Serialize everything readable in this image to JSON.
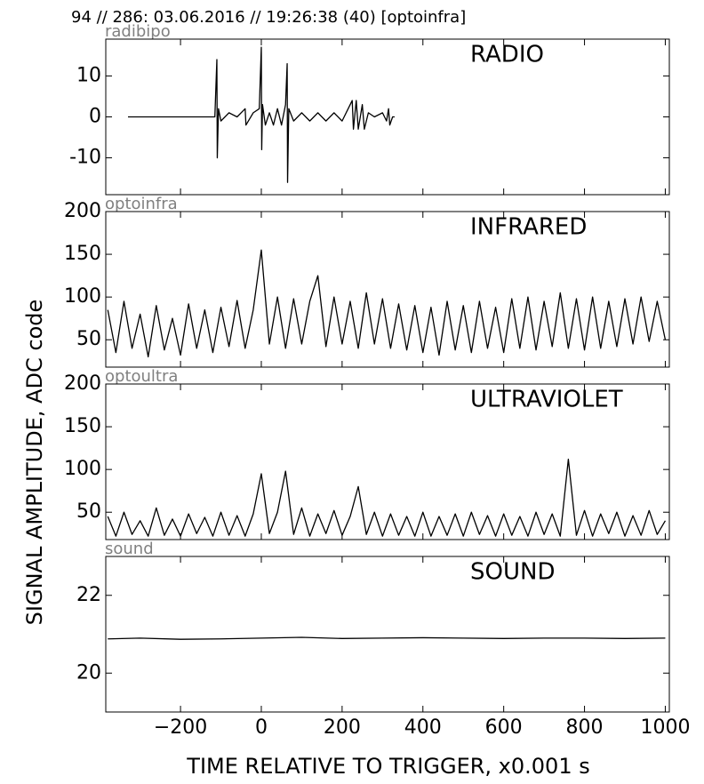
{
  "header": "94 // 286:   03.06.2016 // 19:26:38 (40)  [optoinfra]",
  "ylabel": "SIGNAL AMPLITUDE,  ADC code",
  "xlabel": "TIME RELATIVE TO TRIGGER,   x0.001 s",
  "chart_data": [
    {
      "type": "line",
      "label": "radibipo",
      "title": "RADIO",
      "color": "#000000",
      "x": [
        -330,
        -115,
        -110,
        -109,
        -106,
        -100,
        -80,
        -60,
        -40,
        -38,
        -20,
        -5,
        0,
        1,
        3,
        10,
        20,
        30,
        40,
        50,
        60,
        64,
        65,
        68,
        80,
        100,
        120,
        140,
        160,
        180,
        200,
        225,
        228,
        235,
        240,
        250,
        255,
        265,
        280,
        300,
        310,
        315,
        318,
        325,
        330
      ],
      "values": [
        0,
        0,
        14,
        -10,
        2,
        -1,
        1,
        0,
        2,
        -2,
        1,
        2,
        17,
        -8,
        3,
        -2,
        1,
        -2,
        2,
        -2,
        3,
        13,
        -16,
        2,
        -1,
        1,
        -1,
        1,
        -1,
        1,
        -1,
        4,
        -3,
        4,
        -3,
        3,
        -3,
        1,
        0,
        1,
        -1,
        2,
        -2,
        0,
        0
      ],
      "xlim": [
        -385,
        1010
      ],
      "ylim": [
        -19,
        19
      ],
      "yticks": [
        -10,
        0,
        10
      ]
    },
    {
      "type": "line",
      "label": "optoinfra",
      "title": "INFRARED",
      "color": "#000000",
      "x": [
        -380,
        -360,
        -340,
        -320,
        -300,
        -280,
        -260,
        -240,
        -220,
        -200,
        -180,
        -160,
        -140,
        -120,
        -100,
        -80,
        -60,
        -40,
        -20,
        0,
        20,
        40,
        60,
        80,
        100,
        120,
        140,
        160,
        180,
        200,
        220,
        240,
        260,
        280,
        300,
        320,
        340,
        360,
        380,
        400,
        420,
        440,
        460,
        480,
        500,
        520,
        540,
        560,
        580,
        600,
        620,
        640,
        660,
        680,
        700,
        720,
        740,
        760,
        780,
        800,
        820,
        840,
        860,
        880,
        900,
        920,
        940,
        960,
        980,
        1000
      ],
      "values": [
        85,
        35,
        95,
        40,
        80,
        30,
        90,
        38,
        75,
        32,
        92,
        40,
        85,
        35,
        88,
        42,
        96,
        40,
        85,
        155,
        45,
        100,
        40,
        98,
        45,
        95,
        125,
        42,
        100,
        45,
        95,
        40,
        105,
        45,
        98,
        40,
        92,
        38,
        90,
        35,
        88,
        32,
        95,
        38,
        90,
        35,
        95,
        40,
        88,
        35,
        98,
        40,
        100,
        38,
        95,
        42,
        105,
        40,
        98,
        38,
        100,
        40,
        95,
        42,
        98,
        45,
        100,
        48,
        95,
        50
      ],
      "xlim": [
        -385,
        1010
      ],
      "ylim": [
        18,
        200
      ],
      "yticks": [
        50,
        100,
        150,
        200
      ]
    },
    {
      "type": "line",
      "label": "optoultra",
      "title": "ULTRAVIOLET",
      "color": "#000000",
      "x": [
        -380,
        -360,
        -340,
        -320,
        -300,
        -280,
        -260,
        -240,
        -220,
        -200,
        -180,
        -160,
        -140,
        -120,
        -100,
        -80,
        -60,
        -40,
        -20,
        0,
        20,
        40,
        60,
        80,
        100,
        120,
        140,
        160,
        180,
        200,
        220,
        240,
        260,
        280,
        300,
        320,
        340,
        360,
        380,
        400,
        420,
        440,
        460,
        480,
        500,
        520,
        540,
        560,
        580,
        600,
        620,
        640,
        660,
        680,
        700,
        720,
        740,
        760,
        780,
        800,
        820,
        840,
        860,
        880,
        900,
        920,
        940,
        960,
        980,
        1000
      ],
      "values": [
        45,
        22,
        50,
        24,
        40,
        22,
        55,
        23,
        42,
        22,
        48,
        25,
        44,
        22,
        50,
        23,
        46,
        22,
        48,
        95,
        25,
        50,
        98,
        24,
        55,
        22,
        48,
        25,
        52,
        23,
        45,
        80,
        24,
        50,
        22,
        48,
        23,
        45,
        22,
        50,
        22,
        45,
        23,
        48,
        22,
        50,
        24,
        46,
        22,
        48,
        23,
        45,
        22,
        50,
        24,
        48,
        22,
        112,
        23,
        52,
        22,
        48,
        25,
        50,
        22,
        46,
        23,
        52,
        24,
        40
      ],
      "xlim": [
        -385,
        1010
      ],
      "ylim": [
        18,
        200
      ],
      "yticks": [
        50,
        100,
        150,
        200
      ]
    },
    {
      "type": "line",
      "label": "sound",
      "title": "SOUND",
      "color": "#000000",
      "x": [
        -380,
        -300,
        -200,
        -100,
        0,
        100,
        200,
        300,
        400,
        500,
        600,
        700,
        800,
        900,
        1000
      ],
      "values": [
        20.88,
        20.9,
        20.87,
        20.88,
        20.9,
        20.92,
        20.89,
        20.9,
        20.91,
        20.9,
        20.89,
        20.9,
        20.9,
        20.89,
        20.9
      ],
      "xlim": [
        -385,
        1010
      ],
      "ylim": [
        19,
        23
      ],
      "yticks": [
        20,
        22
      ],
      "xticks": [
        {
          "value": -200,
          "label": "−200"
        },
        0,
        200,
        400,
        600,
        800,
        1000
      ]
    }
  ]
}
